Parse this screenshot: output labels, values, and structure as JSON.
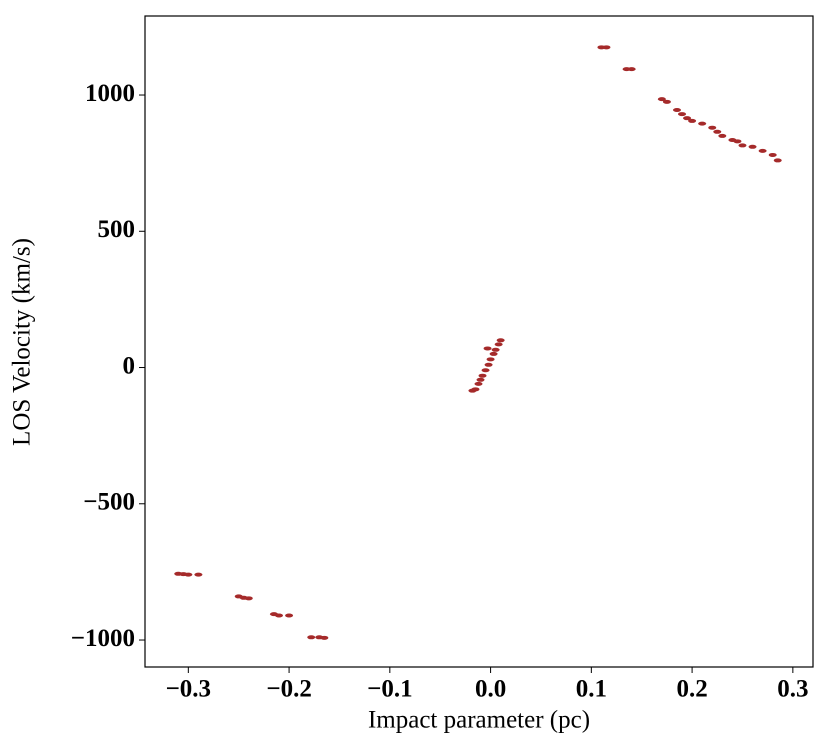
{
  "chart_data": {
    "type": "scatter",
    "x_label": "Impact parameter (pc)",
    "y_label": "LOS Velocity (km/s)",
    "color": "#a52a2a",
    "x": [
      -0.31,
      -0.305,
      -0.3,
      -0.29,
      -0.25,
      -0.245,
      -0.24,
      -0.215,
      -0.21,
      -0.2,
      -0.178,
      -0.17,
      -0.165,
      -0.018,
      -0.015,
      -0.012,
      -0.01,
      -0.008,
      -0.005,
      -0.002,
      0,
      0.003,
      0.005,
      0.008,
      0.01,
      -0.003,
      0.11,
      0.115,
      0.135,
      0.14,
      0.17,
      0.175,
      0.185,
      0.19,
      0.195,
      0.2,
      0.21,
      0.22,
      0.225,
      0.23,
      0.24,
      0.245,
      0.25,
      0.26,
      0.27,
      0.28,
      0.285
    ],
    "values": [
      -757,
      -758,
      -760,
      -760,
      -840,
      -845,
      -847,
      -905,
      -910,
      -910,
      -990,
      -990,
      -992,
      -85,
      -80,
      -60,
      -45,
      -30,
      -10,
      10,
      30,
      50,
      65,
      85,
      100,
      70,
      1175,
      1175,
      1095,
      1095,
      985,
      975,
      945,
      930,
      915,
      905,
      895,
      880,
      865,
      850,
      835,
      830,
      815,
      810,
      795,
      780,
      760
    ],
    "xlim": [
      -0.343,
      0.32
    ],
    "ylim": [
      -1099,
      1290
    ],
    "xticks": [
      {
        "value": -0.3,
        "label": "−0.3"
      },
      {
        "value": -0.2,
        "label": "−0.2"
      },
      {
        "value": -0.1,
        "label": "−0.1"
      },
      {
        "value": 0,
        "label": "0.0"
      },
      0.1,
      0.2,
      0.3
    ],
    "yticks": [
      {
        "value": -1000,
        "label": "−1000"
      },
      {
        "value": -500,
        "label": "−500"
      },
      0,
      500,
      1000
    ]
  }
}
